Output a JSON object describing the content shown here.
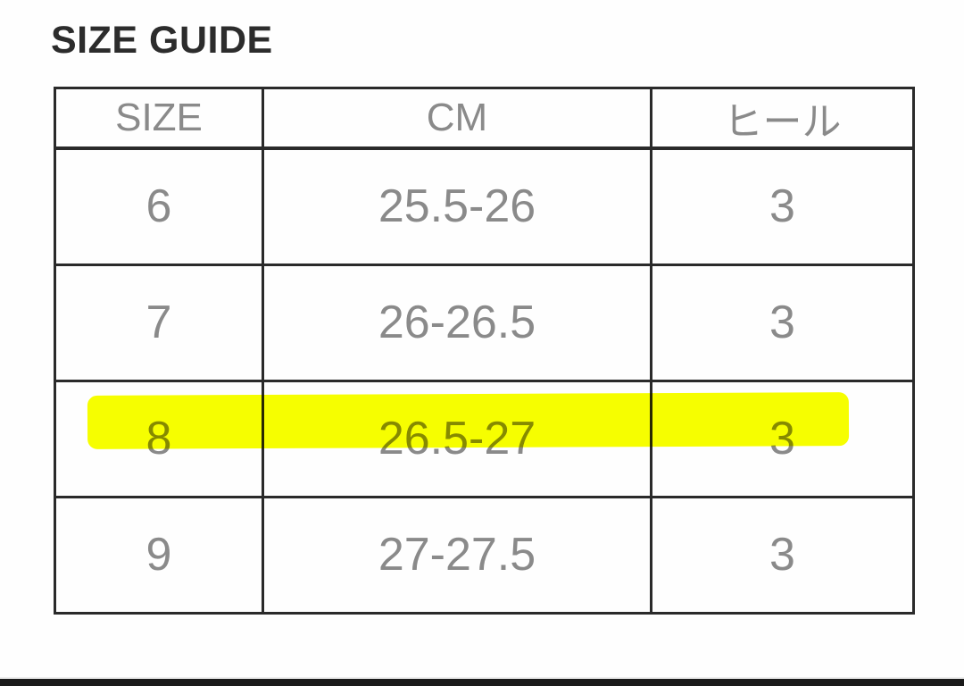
{
  "page": {
    "title": "SIZE GUIDE"
  },
  "size_table": {
    "headers": {
      "size": "SIZE",
      "cm": "CM",
      "heel": "ヒール"
    },
    "rows": [
      {
        "size": "6",
        "cm": "25.5-26",
        "heel": "3"
      },
      {
        "size": "7",
        "cm": "26-26.5",
        "heel": "3"
      },
      {
        "size": "8",
        "cm": "26.5-27",
        "heel": "3"
      },
      {
        "size": "9",
        "cm": "27-27.5",
        "heel": "3"
      }
    ],
    "highlighted_row_size": "8"
  },
  "colors": {
    "highlight": "#f7ff00",
    "border": "#2a2a2a",
    "cell-text": "#8a8a8a",
    "title-text": "#2c2c2c",
    "photo-edge": "#1a1a1a"
  }
}
